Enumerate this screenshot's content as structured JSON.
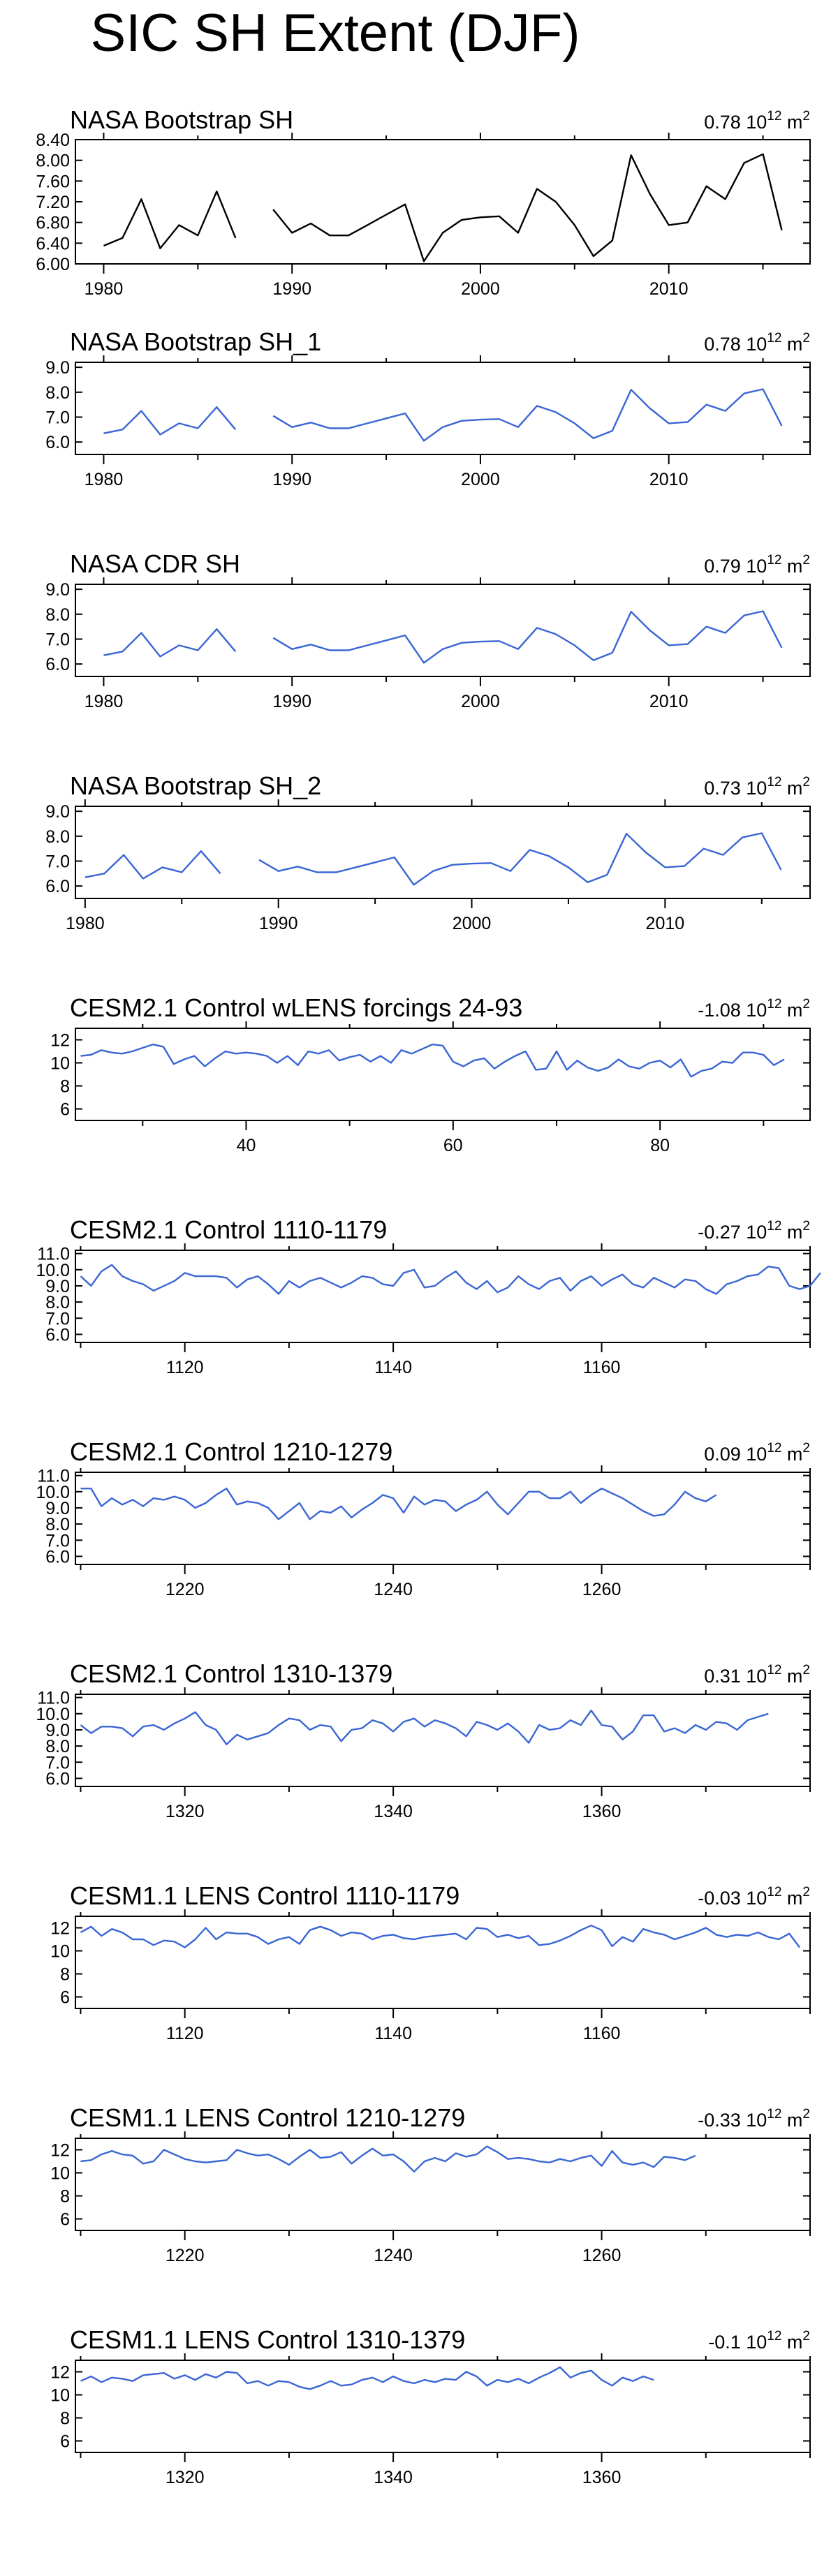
{
  "figure": {
    "title": "SIC SH Extent (DJF)"
  },
  "chart_data": [
    {
      "type": "line",
      "title": "NASA Bootstrap SH",
      "trend": {
        "value": "0.78",
        "unit_base": "10",
        "unit_exp": "12",
        "unit": "m",
        "unit_exp2": "2"
      },
      "color": "#000000",
      "xlim": [
        1978.5,
        2017.5
      ],
      "ylim": [
        6.0,
        8.4
      ],
      "xticks": [
        1980,
        1990,
        2000,
        2010
      ],
      "xticklabels": [
        "1980",
        "1990",
        "2000",
        "2010"
      ],
      "yticks": [
        6.0,
        6.4,
        6.8,
        7.2,
        7.6,
        8.0,
        8.4
      ],
      "yticklabels": [
        "6.00",
        "6.40",
        "6.80",
        "7.20",
        "7.60",
        "8.00",
        "8.40"
      ],
      "x_start": 1980,
      "x_step": 1,
      "values": [
        6.35,
        6.5,
        7.25,
        6.3,
        6.75,
        6.55,
        7.4,
        6.5,
        null,
        7.05,
        6.6,
        6.78,
        6.55,
        6.55,
        6.75,
        6.95,
        7.15,
        6.05,
        6.6,
        6.85,
        6.9,
        6.92,
        6.6,
        7.45,
        7.2,
        6.75,
        6.15,
        6.45,
        8.1,
        7.35,
        6.75,
        6.8,
        7.5,
        7.25,
        7.95,
        8.12,
        6.65
      ]
    },
    {
      "type": "line",
      "title": "NASA Bootstrap SH_1",
      "trend": {
        "value": "0.78",
        "unit_base": "10",
        "unit_exp": "12",
        "unit": "m",
        "unit_exp2": "2"
      },
      "color": "#3a66d4",
      "xlim": [
        1978.5,
        2017.5
      ],
      "ylim": [
        5.5,
        9.2
      ],
      "xticks": [
        1980,
        1990,
        2000,
        2010
      ],
      "xticklabels": [
        "1980",
        "1990",
        "2000",
        "2010"
      ],
      "yticks": [
        6.0,
        7.0,
        8.0,
        9.0
      ],
      "yticklabels": [
        "6.0",
        "7.0",
        "8.0",
        "9.0"
      ],
      "x_start": 1980,
      "x_step": 1,
      "values": [
        6.35,
        6.5,
        7.25,
        6.3,
        6.75,
        6.55,
        7.4,
        6.5,
        null,
        7.05,
        6.6,
        6.78,
        6.55,
        6.55,
        6.75,
        6.95,
        7.15,
        6.05,
        6.6,
        6.85,
        6.9,
        6.92,
        6.6,
        7.45,
        7.2,
        6.75,
        6.15,
        6.45,
        8.1,
        7.35,
        6.75,
        6.8,
        7.5,
        7.25,
        7.95,
        8.12,
        6.65
      ]
    },
    {
      "type": "line",
      "title": "NASA CDR SH",
      "trend": {
        "value": "0.79",
        "unit_base": "10",
        "unit_exp": "12",
        "unit": "m",
        "unit_exp2": "2"
      },
      "color": "#3a66d4",
      "xlim": [
        1978.5,
        2017.5
      ],
      "ylim": [
        5.5,
        9.2
      ],
      "xticks": [
        1980,
        1990,
        2000,
        2010
      ],
      "xticklabels": [
        "1980",
        "1990",
        "2000",
        "2010"
      ],
      "yticks": [
        6.0,
        7.0,
        8.0,
        9.0
      ],
      "yticklabels": [
        "6.0",
        "7.0",
        "8.0",
        "9.0"
      ],
      "x_start": 1980,
      "x_step": 1,
      "values": [
        6.35,
        6.5,
        7.25,
        6.3,
        6.75,
        6.55,
        7.4,
        6.5,
        null,
        7.05,
        6.6,
        6.78,
        6.55,
        6.55,
        6.75,
        6.95,
        7.15,
        6.05,
        6.6,
        6.85,
        6.9,
        6.92,
        6.6,
        7.45,
        7.2,
        6.75,
        6.15,
        6.45,
        8.1,
        7.35,
        6.75,
        6.8,
        7.5,
        7.25,
        7.95,
        8.12,
        6.65
      ]
    },
    {
      "type": "line",
      "title": "NASA Bootstrap SH_2",
      "trend": {
        "value": "0.73",
        "unit_base": "10",
        "unit_exp": "12",
        "unit": "m",
        "unit_exp2": "2"
      },
      "color": "#3a66d4",
      "xlim": [
        1979.5,
        2017.5
      ],
      "ylim": [
        5.5,
        9.2
      ],
      "xticks": [
        1980,
        1990,
        2000,
        2010
      ],
      "xticklabels": [
        "1980",
        "1990",
        "2000",
        "2010"
      ],
      "yticks": [
        6.0,
        7.0,
        8.0,
        9.0
      ],
      "yticklabels": [
        "6.0",
        "7.0",
        "8.0",
        "9.0"
      ],
      "x_start": 1980,
      "x_step": 1,
      "values": [
        6.35,
        6.5,
        7.25,
        6.3,
        6.75,
        6.55,
        7.4,
        6.5,
        null,
        7.05,
        6.6,
        6.78,
        6.55,
        6.55,
        6.75,
        6.95,
        7.15,
        6.05,
        6.6,
        6.85,
        6.9,
        6.92,
        6.6,
        7.45,
        7.2,
        6.75,
        6.15,
        6.45,
        8.1,
        7.35,
        6.75,
        6.8,
        7.5,
        7.25,
        7.95,
        8.12,
        6.65
      ]
    },
    {
      "type": "line",
      "title": "CESM2.1 Control wLENS forcings 24-93",
      "trend": {
        "value": "-1.08",
        "unit_base": "10",
        "unit_exp": "12",
        "unit": "m",
        "unit_exp2": "2"
      },
      "color": "#3a66d4",
      "xlim": [
        23.5,
        94.5
      ],
      "ylim": [
        5,
        13
      ],
      "xticks": [
        40,
        60,
        80
      ],
      "xticklabels": [
        "40",
        "60",
        "80"
      ],
      "yticks": [
        6,
        8,
        10,
        12
      ],
      "yticklabels": [
        "6",
        "8",
        "10",
        "12"
      ],
      "x_start": 24,
      "x_step": 1,
      "values": [
        10.6,
        10.7,
        11.1,
        10.9,
        10.8,
        11.0,
        11.3,
        11.6,
        11.4,
        9.9,
        10.3,
        10.6,
        9.7,
        10.4,
        11.0,
        10.8,
        10.9,
        10.8,
        10.6,
        10.0,
        10.6,
        9.8,
        11.0,
        10.8,
        11.1,
        10.2,
        10.5,
        10.7,
        10.1,
        10.6,
        10.0,
        11.1,
        10.8,
        11.2,
        11.6,
        11.5,
        10.1,
        9.7,
        10.2,
        10.4,
        9.5,
        10.1,
        10.6,
        11.0,
        9.4,
        9.5,
        11.0,
        9.4,
        10.2,
        9.6,
        9.3,
        9.6,
        10.3,
        9.7,
        9.5,
        10.0,
        10.2,
        9.6,
        10.3,
        8.8,
        9.3,
        9.5,
        10.1,
        10.0,
        10.9,
        10.9,
        10.7,
        9.8,
        10.3
      ]
    },
    {
      "type": "line",
      "title": "CESM2.1 Control 1110-1179",
      "trend": {
        "value": "-0.27",
        "unit_base": "10",
        "unit_exp": "12",
        "unit": "m",
        "unit_exp2": "2"
      },
      "color": "#3a66d4",
      "xlim": [
        1109.5,
        1180
      ],
      "ylim": [
        5.5,
        11.2
      ],
      "xticks": [
        1120,
        1140,
        1160
      ],
      "xticklabels": [
        "1120",
        "1140",
        "1160"
      ],
      "yticks": [
        6.0,
        7.0,
        8.0,
        9.0,
        10.0,
        11.0
      ],
      "yticklabels": [
        "6.0",
        "7.0",
        "8.0",
        "9.0",
        "10.0",
        "11.0"
      ],
      "x_start": 1110,
      "x_step": 1,
      "values": [
        9.6,
        9.0,
        9.9,
        10.3,
        9.6,
        9.3,
        9.1,
        8.7,
        9.0,
        9.3,
        9.8,
        9.6,
        9.6,
        9.6,
        9.5,
        8.9,
        9.4,
        9.6,
        9.1,
        8.5,
        9.3,
        8.9,
        9.3,
        9.5,
        9.2,
        8.9,
        9.2,
        9.6,
        9.5,
        9.1,
        9.0,
        9.8,
        10.0,
        8.9,
        9.0,
        9.5,
        9.9,
        9.2,
        8.8,
        9.3,
        8.6,
        8.9,
        9.6,
        9.1,
        8.8,
        9.3,
        9.5,
        8.7,
        9.3,
        9.6,
        9.0,
        9.4,
        9.7,
        9.1,
        8.9,
        9.5,
        9.2,
        8.9,
        9.4,
        9.3,
        8.8,
        8.5,
        9.1,
        9.3,
        9.6,
        9.7,
        10.2,
        10.1,
        9.0,
        8.8,
        9.0,
        9.8
      ]
    },
    {
      "type": "line",
      "title": "CESM2.1 Control 1210-1279",
      "trend": {
        "value": "0.09",
        "unit_base": "10",
        "unit_exp": "12",
        "unit": "m",
        "unit_exp2": "2"
      },
      "color": "#3a66d4",
      "xlim": [
        1209.5,
        1280
      ],
      "ylim": [
        5.5,
        11.2
      ],
      "xticks": [
        1220,
        1240,
        1260
      ],
      "xticklabels": [
        "1220",
        "1240",
        "1260"
      ],
      "yticks": [
        6.0,
        7.0,
        8.0,
        9.0,
        10.0,
        11.0
      ],
      "yticklabels": [
        "6.0",
        "7.0",
        "8.0",
        "9.0",
        "10.0",
        "11.0"
      ],
      "x_start": 1210,
      "x_step": 1,
      "values": [
        10.2,
        10.2,
        9.1,
        9.6,
        9.2,
        9.5,
        9.1,
        9.6,
        9.5,
        9.7,
        9.5,
        9.0,
        9.3,
        9.8,
        10.2,
        9.2,
        9.4,
        9.3,
        9.0,
        8.3,
        8.8,
        9.3,
        8.3,
        8.8,
        8.7,
        9.1,
        8.4,
        8.9,
        9.3,
        9.8,
        9.6,
        8.7,
        9.7,
        9.2,
        9.5,
        9.4,
        8.8,
        9.2,
        9.5,
        10.0,
        9.2,
        8.6,
        9.3,
        10.0,
        10.0,
        9.6,
        9.6,
        10.0,
        9.3,
        9.8,
        10.2,
        9.9,
        9.6,
        9.2,
        8.8,
        8.5,
        8.6,
        9.2,
        10.0,
        9.6,
        9.4,
        9.8
      ]
    },
    {
      "type": "line",
      "title": "CESM2.1 Control 1310-1379",
      "trend": {
        "value": "0.31",
        "unit_base": "10",
        "unit_exp": "12",
        "unit": "m",
        "unit_exp2": "2"
      },
      "color": "#3a66d4",
      "xlim": [
        1309.5,
        1380
      ],
      "ylim": [
        5.5,
        11.2
      ],
      "xticks": [
        1320,
        1340,
        1360
      ],
      "xticklabels": [
        "1320",
        "1340",
        "1360"
      ],
      "yticks": [
        6.0,
        7.0,
        8.0,
        9.0,
        10.0,
        11.0
      ],
      "yticklabels": [
        "6.0",
        "7.0",
        "8.0",
        "9.0",
        "10.0",
        "11.0"
      ],
      "x_start": 1310,
      "x_step": 1,
      "values": [
        9.3,
        8.8,
        9.2,
        9.2,
        9.1,
        8.6,
        9.2,
        9.3,
        9.0,
        9.4,
        9.7,
        10.1,
        9.3,
        9.0,
        8.1,
        8.7,
        8.4,
        8.6,
        8.8,
        9.3,
        9.7,
        9.6,
        9.0,
        9.3,
        9.2,
        8.3,
        9.0,
        9.1,
        9.6,
        9.4,
        8.9,
        9.5,
        9.7,
        9.2,
        9.6,
        9.4,
        9.1,
        8.6,
        9.5,
        9.3,
        9.0,
        9.4,
        8.9,
        8.2,
        9.3,
        9.0,
        9.1,
        9.6,
        9.3,
        10.2,
        9.3,
        9.2,
        8.4,
        8.9,
        9.9,
        9.9,
        8.9,
        9.1,
        8.8,
        9.3,
        9.0,
        9.5,
        9.4,
        9.0,
        9.6,
        9.8,
        10.0
      ]
    },
    {
      "type": "line",
      "title": "CESM1.1 LENS Control 1110-1179",
      "trend": {
        "value": "-0.03",
        "unit_base": "10",
        "unit_exp": "12",
        "unit": "m",
        "unit_exp2": "2"
      },
      "color": "#3a66d4",
      "xlim": [
        1109.5,
        1180
      ],
      "ylim": [
        5,
        13
      ],
      "xticks": [
        1120,
        1140,
        1160
      ],
      "xticklabels": [
        "1120",
        "1140",
        "1160"
      ],
      "yticks": [
        6,
        8,
        10,
        12
      ],
      "yticklabels": [
        "6",
        "8",
        "10",
        "12"
      ],
      "x_start": 1110,
      "x_step": 1,
      "values": [
        11.6,
        12.1,
        11.3,
        11.9,
        11.6,
        11.0,
        11.0,
        10.5,
        10.9,
        10.8,
        10.3,
        11.0,
        12.0,
        11.0,
        11.6,
        11.5,
        11.5,
        11.2,
        10.6,
        11.0,
        11.2,
        10.6,
        11.8,
        12.1,
        11.8,
        11.3,
        11.6,
        11.5,
        11.0,
        11.3,
        11.4,
        11.1,
        11.0,
        11.2,
        11.3,
        11.4,
        11.5,
        11.0,
        12.0,
        11.9,
        11.2,
        11.4,
        11.1,
        11.3,
        10.5,
        10.6,
        10.9,
        11.3,
        11.8,
        12.2,
        11.8,
        10.4,
        11.2,
        10.8,
        11.9,
        11.6,
        11.4,
        11.0,
        11.3,
        11.6,
        12.0,
        11.4,
        11.2,
        11.4,
        11.3,
        11.6,
        11.2,
        11.0,
        11.5,
        10.3
      ]
    },
    {
      "type": "line",
      "title": "CESM1.1 LENS Control 1210-1279",
      "trend": {
        "value": "-0.33",
        "unit_base": "10",
        "unit_exp": "12",
        "unit": "m",
        "unit_exp2": "2"
      },
      "color": "#3a66d4",
      "xlim": [
        1209.5,
        1280
      ],
      "ylim": [
        5,
        13
      ],
      "xticks": [
        1220,
        1240,
        1260
      ],
      "xticklabels": [
        "1220",
        "1240",
        "1260"
      ],
      "yticks": [
        6,
        8,
        10,
        12
      ],
      "yticklabels": [
        "6",
        "8",
        "10",
        "12"
      ],
      "x_start": 1210,
      "x_step": 1,
      "values": [
        11.0,
        11.1,
        11.6,
        11.9,
        11.6,
        11.5,
        10.8,
        11.0,
        12.0,
        11.6,
        11.2,
        11.0,
        10.9,
        11.0,
        11.1,
        12.0,
        11.7,
        11.5,
        11.6,
        11.2,
        10.7,
        11.4,
        12.0,
        11.3,
        11.4,
        11.8,
        10.8,
        11.5,
        12.1,
        11.5,
        11.6,
        11.0,
        10.1,
        11.0,
        11.3,
        11.0,
        11.7,
        11.4,
        11.6,
        12.3,
        11.8,
        11.2,
        11.3,
        11.2,
        11.0,
        10.9,
        11.2,
        11.0,
        11.3,
        11.5,
        10.6,
        11.9,
        10.9,
        10.7,
        10.9,
        10.5,
        11.4,
        11.3,
        11.1,
        11.5
      ]
    },
    {
      "type": "line",
      "title": "CESM1.1 LENS Control 1310-1379",
      "trend": {
        "value": "-0.1",
        "unit_base": "10",
        "unit_exp": "12",
        "unit": "m",
        "unit_exp2": "2"
      },
      "color": "#3a66d4",
      "xlim": [
        1309.5,
        1380
      ],
      "ylim": [
        5,
        13
      ],
      "xticks": [
        1320,
        1340,
        1360
      ],
      "xticklabels": [
        "1320",
        "1340",
        "1360"
      ],
      "yticks": [
        6,
        8,
        10,
        12
      ],
      "yticklabels": [
        "6",
        "8",
        "10",
        "12"
      ],
      "x_start": 1310,
      "x_step": 1,
      "values": [
        11.2,
        11.6,
        11.1,
        11.5,
        11.4,
        11.2,
        11.7,
        11.8,
        11.9,
        11.4,
        11.7,
        11.3,
        11.8,
        11.5,
        12.0,
        11.9,
        11.0,
        11.2,
        10.8,
        11.2,
        11.1,
        10.7,
        10.5,
        10.8,
        11.2,
        10.8,
        10.9,
        11.3,
        11.5,
        11.1,
        11.6,
        11.2,
        11.0,
        11.3,
        11.1,
        11.4,
        11.3,
        12.0,
        11.6,
        10.8,
        11.3,
        11.1,
        11.4,
        11.0,
        11.5,
        11.9,
        12.4,
        11.5,
        11.9,
        12.1,
        11.3,
        10.8,
        11.5,
        11.2,
        11.6,
        11.3
      ]
    }
  ]
}
